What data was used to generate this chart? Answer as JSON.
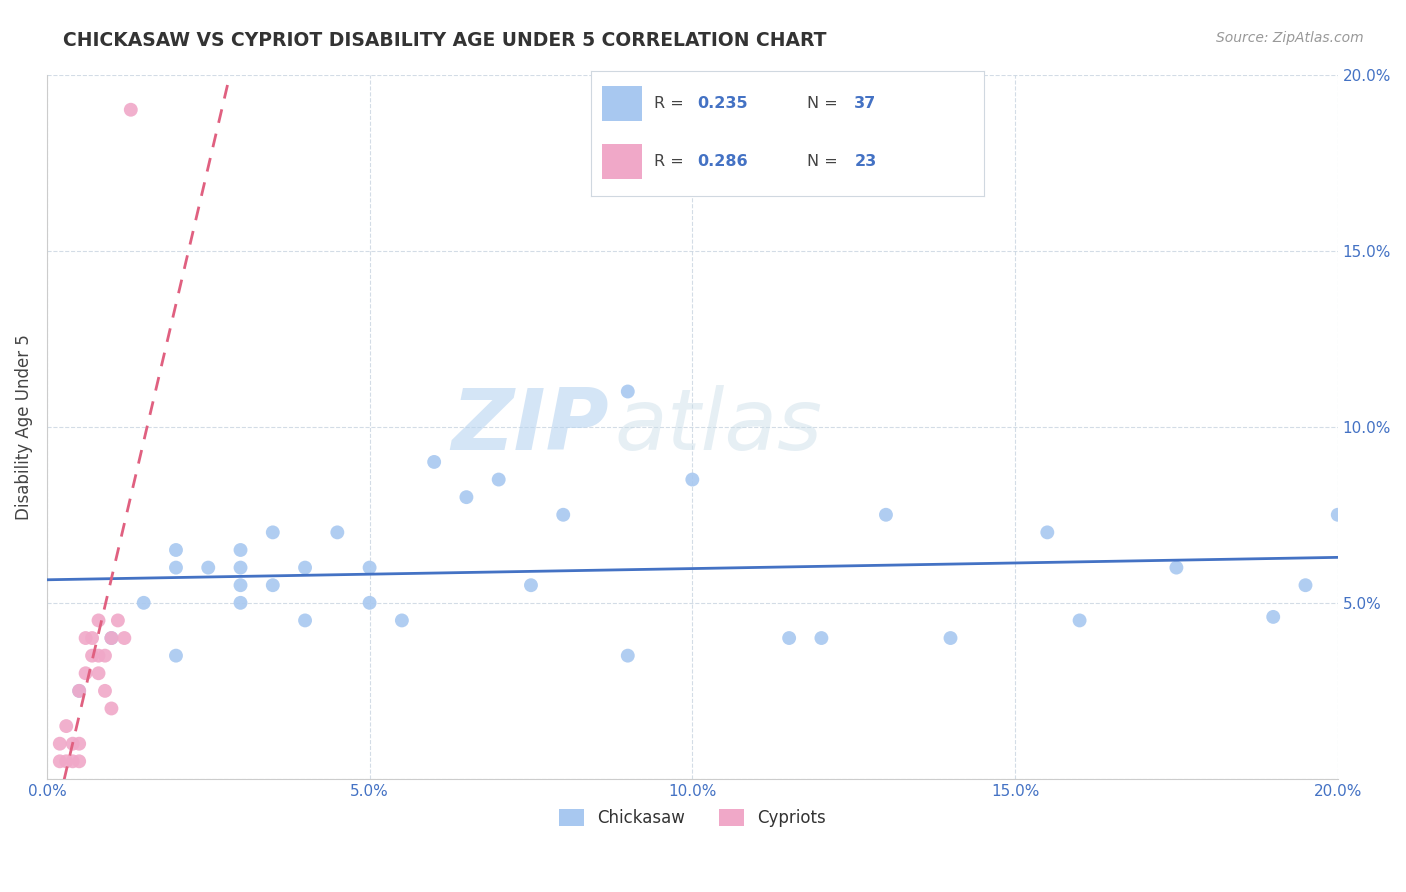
{
  "title": "CHICKASAW VS CYPRIOT DISABILITY AGE UNDER 5 CORRELATION CHART",
  "source": "Source: ZipAtlas.com",
  "ylabel": "Disability Age Under 5",
  "xlim": [
    0.0,
    0.2
  ],
  "ylim": [
    0.0,
    0.2
  ],
  "xtick_vals": [
    0.0,
    0.05,
    0.1,
    0.15,
    0.2
  ],
  "xtick_labels": [
    "0.0%",
    "5.0%",
    "10.0%",
    "15.0%",
    "20.0%"
  ],
  "ytick_vals": [
    0.0,
    0.05,
    0.1,
    0.15,
    0.2
  ],
  "ytick_labels": [
    "",
    "5.0%",
    "10.0%",
    "15.0%",
    "20.0%"
  ],
  "chickasaw_R": 0.235,
  "chickasaw_N": 37,
  "cypriot_R": 0.286,
  "cypriot_N": 23,
  "chickasaw_color": "#a8c8f0",
  "cypriot_color": "#f0a8c8",
  "chickasaw_line_color": "#4472c4",
  "cypriot_line_color": "#e06080",
  "watermark_zip": "ZIP",
  "watermark_atlas": "atlas",
  "chickasaw_x": [
    0.005,
    0.01,
    0.015,
    0.02,
    0.02,
    0.02,
    0.025,
    0.03,
    0.03,
    0.03,
    0.03,
    0.035,
    0.035,
    0.04,
    0.04,
    0.045,
    0.05,
    0.05,
    0.055,
    0.06,
    0.065,
    0.07,
    0.075,
    0.08,
    0.09,
    0.09,
    0.1,
    0.115,
    0.12,
    0.13,
    0.14,
    0.155,
    0.16,
    0.175,
    0.19,
    0.195,
    0.2
  ],
  "chickasaw_y": [
    0.025,
    0.04,
    0.05,
    0.06,
    0.065,
    0.035,
    0.06,
    0.055,
    0.06,
    0.065,
    0.05,
    0.055,
    0.07,
    0.045,
    0.06,
    0.07,
    0.05,
    0.06,
    0.045,
    0.09,
    0.08,
    0.085,
    0.055,
    0.075,
    0.11,
    0.035,
    0.085,
    0.04,
    0.04,
    0.075,
    0.04,
    0.07,
    0.045,
    0.06,
    0.046,
    0.055,
    0.075
  ],
  "cypriot_x": [
    0.002,
    0.002,
    0.003,
    0.003,
    0.004,
    0.004,
    0.005,
    0.005,
    0.005,
    0.006,
    0.006,
    0.007,
    0.007,
    0.008,
    0.008,
    0.008,
    0.009,
    0.009,
    0.01,
    0.01,
    0.011,
    0.012,
    0.013
  ],
  "cypriot_y": [
    0.005,
    0.01,
    0.005,
    0.015,
    0.005,
    0.01,
    0.005,
    0.01,
    0.025,
    0.03,
    0.04,
    0.035,
    0.04,
    0.03,
    0.035,
    0.045,
    0.025,
    0.035,
    0.02,
    0.04,
    0.045,
    0.04,
    0.19
  ],
  "legend_chickasaw_label": "Chickasaw",
  "legend_cypriot_label": "Cypriots"
}
